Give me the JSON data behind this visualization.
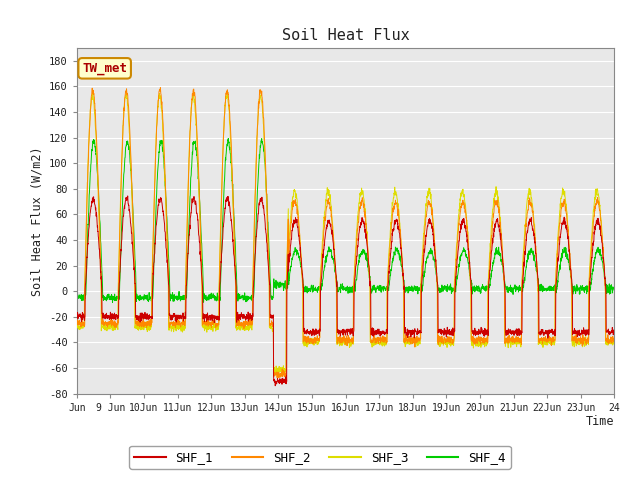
{
  "title": "Soil Heat Flux",
  "ylabel": "Soil Heat Flux (W/m2)",
  "xlabel": "Time",
  "ylim": [
    -80,
    190
  ],
  "colors": {
    "SHF_1": "#cc0000",
    "SHF_2": "#ff8800",
    "SHF_3": "#dddd00",
    "SHF_4": "#00cc00"
  },
  "fig_bg": "#ffffff",
  "plot_bg": "#e8e8e8",
  "grid_color": "#ffffff",
  "annotation_text": "TW_met",
  "annotation_box_color": "#ffffcc",
  "annotation_border_color": "#cc8800",
  "xtick_labels": [
    "Jun",
    "9 Jun",
    "10Jun",
    "11Jun",
    "12Jun",
    "13Jun",
    "14Jun",
    "15Jun",
    "16Jun",
    "17Jun",
    "18Jun",
    "19Jun",
    "20Jun",
    "21Jun",
    "22Jun",
    "23Jun",
    "24"
  ],
  "ytick_labels": [
    -80,
    -60,
    -40,
    -20,
    0,
    20,
    40,
    60,
    80,
    100,
    120,
    140,
    160,
    180
  ]
}
